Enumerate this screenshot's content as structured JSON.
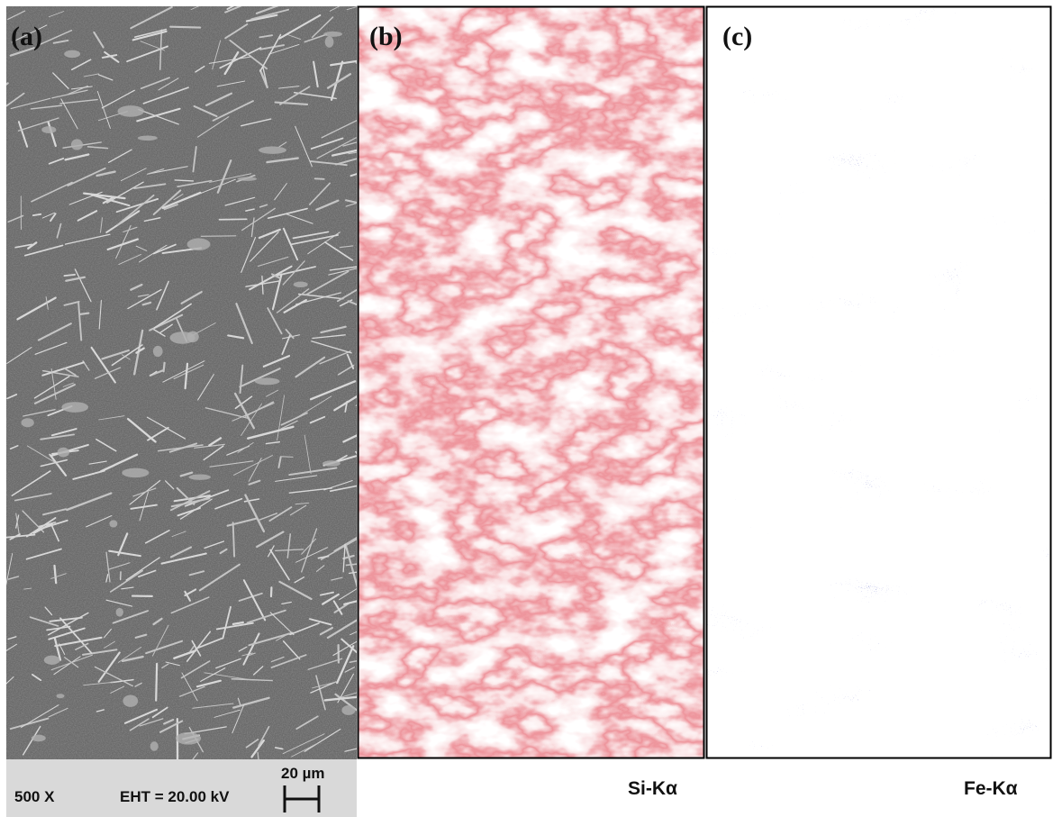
{
  "panels": [
    {
      "label": "(a)",
      "info": {
        "magnification": "500 X",
        "voltage": "EHT = 20.00 kV",
        "scale": "20 µm"
      }
    },
    {
      "label": "(b)",
      "caption": "Si-Kα"
    },
    {
      "label": "(c)",
      "caption": "Fe-Kα"
    }
  ]
}
